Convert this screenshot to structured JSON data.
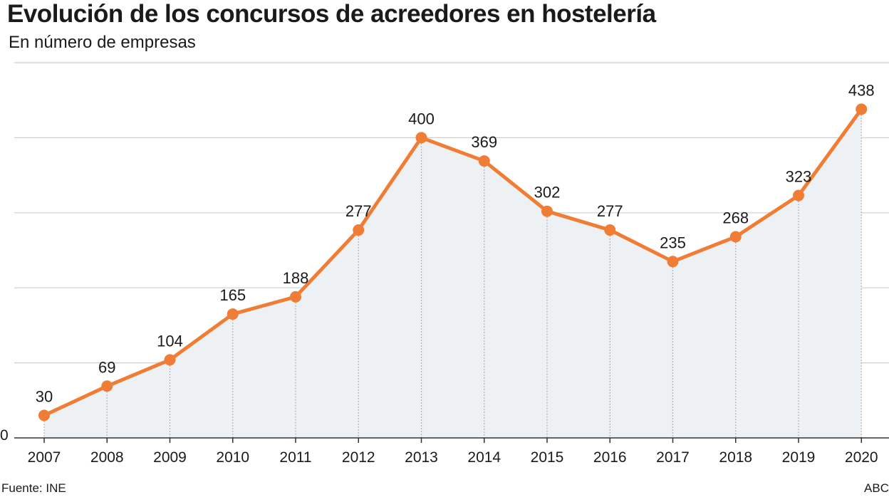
{
  "header": {
    "title": "Evolución de los concursos de acreedores en hostelería",
    "subtitle": "En número de empresas"
  },
  "footer": {
    "source": "Fuente: INE",
    "credit": "ABC"
  },
  "colors": {
    "line": "#ef7d35",
    "area": "#eef1f3",
    "grid": "#cfcfcf",
    "baseline": "#333333"
  },
  "chart_data": {
    "type": "area",
    "title": "Evolución de los concursos de acreedores en hostelería",
    "subtitle": "En número de empresas",
    "xlabel": "",
    "ylabel": "",
    "categories": [
      "2007",
      "2008",
      "2009",
      "2010",
      "2011",
      "2012",
      "2013",
      "2014",
      "2015",
      "2016",
      "2017",
      "2018",
      "2019",
      "2020"
    ],
    "values": [
      30,
      69,
      104,
      165,
      188,
      277,
      400,
      369,
      302,
      277,
      235,
      268,
      323,
      438
    ],
    "ylim": [
      0,
      500
    ],
    "y_gridlines": [
      100,
      200,
      300,
      400,
      500
    ],
    "y_tick_labels": [
      "0"
    ],
    "grid": true,
    "data_labels": true,
    "legend": "none"
  }
}
